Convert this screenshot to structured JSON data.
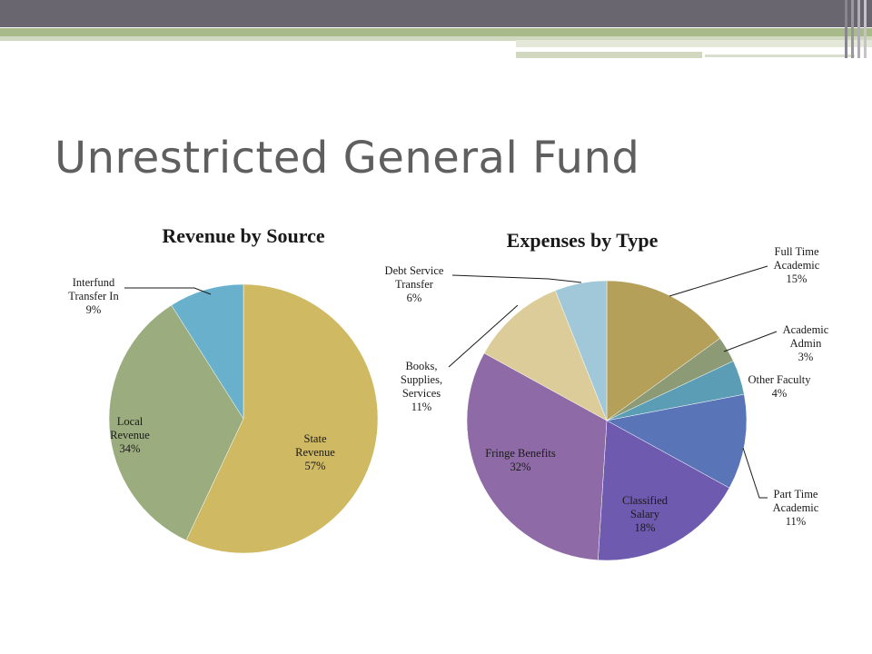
{
  "slide": {
    "title": "Unrestricted General Fund"
  },
  "chart_data": [
    {
      "type": "pie",
      "title": "Revenue by Source",
      "slices": [
        {
          "lines": [
            "State",
            "Revenue",
            "57%"
          ],
          "value": 57,
          "color": "#cfb963"
        },
        {
          "lines": [
            "Local",
            "Revenue",
            "34%"
          ],
          "value": 34,
          "color": "#9bad7e"
        },
        {
          "lines": [
            "Interfund",
            "Transfer In",
            "9%"
          ],
          "value": 9,
          "color": "#68b0cc"
        }
      ],
      "start_angle_deg": 0,
      "direction": "clockwise"
    },
    {
      "type": "pie",
      "title": "Expenses by Type",
      "slices": [
        {
          "lines": [
            "Full Time",
            "Academic",
            "15%"
          ],
          "value": 15,
          "color": "#b5a05a"
        },
        {
          "lines": [
            "Academic",
            "Admin",
            "3%"
          ],
          "value": 3,
          "color": "#8c9a76"
        },
        {
          "lines": [
            "Other Faculty",
            "4%"
          ],
          "value": 4,
          "color": "#5b9db4"
        },
        {
          "lines": [
            "Part Time",
            "Academic",
            "11%"
          ],
          "value": 11,
          "color": "#5a74b8"
        },
        {
          "lines": [
            "Classified",
            "Salary",
            "18%"
          ],
          "value": 18,
          "color": "#6e5aae"
        },
        {
          "lines": [
            "Fringe Benefits",
            "32%"
          ],
          "value": 32,
          "color": "#8e6aa6"
        },
        {
          "lines": [
            "Books,",
            "Supplies,",
            "Services",
            "11%"
          ],
          "value": 11,
          "color": "#dccc99"
        },
        {
          "lines": [
            "Debt Service",
            "Transfer",
            "6%"
          ],
          "value": 6,
          "color": "#a0c8d9"
        }
      ],
      "start_angle_deg": 0,
      "direction": "clockwise"
    }
  ]
}
